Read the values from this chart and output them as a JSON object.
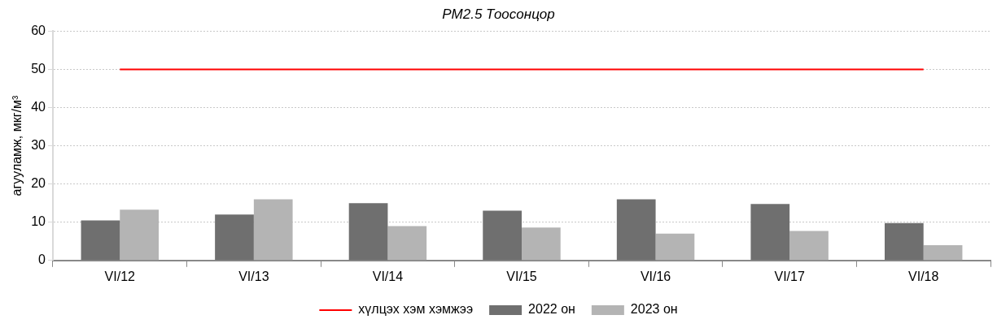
{
  "chart_data": {
    "type": "bar",
    "title": "PM2.5 Тоосонцор",
    "ylabel": "агууламж, мкг/м³",
    "categories": [
      "VI/12",
      "VI/13",
      "VI/14",
      "VI/15",
      "VI/16",
      "VI/17",
      "VI/18"
    ],
    "series": [
      {
        "name": "2022 он",
        "color": "#6f6f6f",
        "values": [
          10.5,
          12,
          15,
          13,
          16,
          14.8,
          9.8
        ]
      },
      {
        "name": "2023 он",
        "color": "#b4b4b4",
        "values": [
          13.3,
          16,
          9,
          8.6,
          7,
          7.7,
          4
        ]
      },
      {
        "name": "хүлцэх хэм хэмжээ",
        "type": "line",
        "color": "#ff0000",
        "values": [
          50,
          50,
          50,
          50,
          50,
          50,
          50
        ]
      }
    ],
    "ylim": [
      0,
      60
    ],
    "yticks": [
      0,
      10,
      20,
      30,
      40,
      50,
      60
    ],
    "grid": "y",
    "legend": "bottom"
  }
}
